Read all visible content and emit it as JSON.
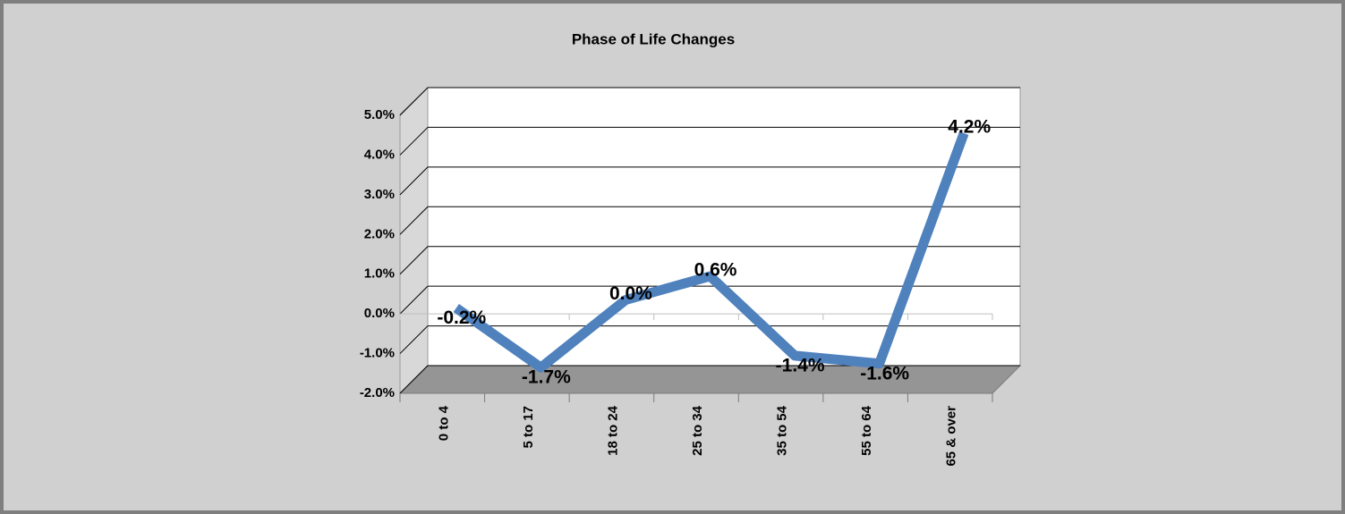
{
  "chart_data": {
    "type": "line",
    "title": "Phase of Life Changes",
    "categories": [
      "0 to 4",
      "5 to 17",
      "18 to 24",
      "25 to 34",
      "35 to 54",
      "55 to 64",
      "65 & over"
    ],
    "values": [
      -0.2,
      -1.7,
      0.0,
      0.6,
      -1.4,
      -1.6,
      4.2
    ],
    "value_labels": [
      "-0.2%",
      "-1.7%",
      "0.0%",
      "0.6%",
      "-1.4%",
      "-1.6%",
      "4.2%"
    ],
    "color": "#4f81bd",
    "negative_tick_color": "#ff0000",
    "ylim": [
      -2,
      5
    ],
    "yticks": [
      {
        "value": -2,
        "label": "-2.0%"
      },
      {
        "value": -1,
        "label": "-1.0%"
      },
      {
        "value": 0,
        "label": "0.0%"
      },
      {
        "value": 1,
        "label": "1.0%"
      },
      {
        "value": 2,
        "label": "2.0%"
      },
      {
        "value": 3,
        "label": "3.0%"
      },
      {
        "value": 4,
        "label": "4.0%"
      },
      {
        "value": 5,
        "label": "5.0%"
      }
    ],
    "grid": true,
    "legend": false
  }
}
